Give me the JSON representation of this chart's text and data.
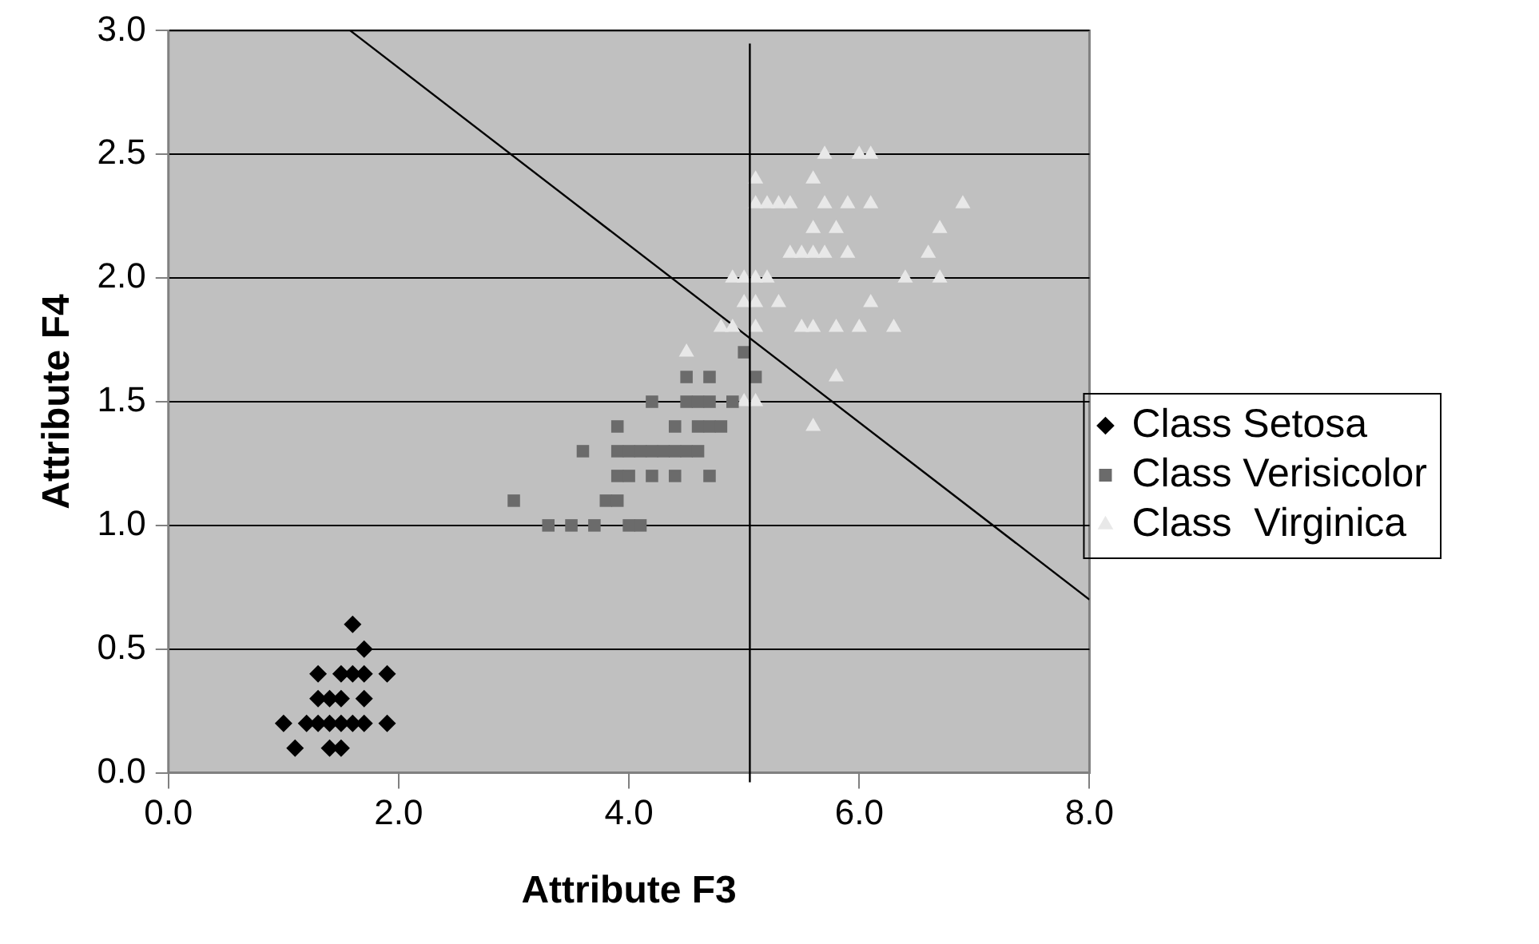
{
  "chart_data": {
    "type": "scatter",
    "xlabel": "Attribute F3",
    "ylabel": "Attribute F4",
    "xlim": [
      0,
      8
    ],
    "xticks": [
      {
        "value": 0,
        "label": "0.0"
      },
      {
        "value": 2,
        "label": "2.0"
      },
      {
        "value": 4,
        "label": "4.0"
      },
      {
        "value": 6,
        "label": "6.0"
      },
      {
        "value": 8,
        "label": "8.0"
      }
    ],
    "ylim": [
      0,
      3
    ],
    "yticks": [
      {
        "value": 0,
        "label": "0.0"
      },
      0.5,
      {
        "value": 1,
        "label": "1.0"
      },
      1.5,
      {
        "value": 2,
        "label": "2.0"
      },
      2.5,
      {
        "value": 3,
        "label": "3.0"
      }
    ],
    "grid": "y",
    "legend": "right",
    "ref_lines": [
      {
        "axis": "x",
        "value": 5.05,
        "color": "#000000"
      }
    ],
    "series": [
      {
        "name": "Class Setosa",
        "color": "#000000",
        "marker": "diamond",
        "x": [
          1.6,
          1.7,
          1.3,
          1.5,
          1.6,
          1.7,
          1.9,
          1.3,
          1.4,
          1.5,
          1.7,
          1.0,
          1.2,
          1.3,
          1.4,
          1.5,
          1.6,
          1.7,
          1.9,
          1.1,
          1.4,
          1.5
        ],
        "values": [
          0.6,
          0.5,
          0.4,
          0.4,
          0.4,
          0.4,
          0.4,
          0.3,
          0.3,
          0.3,
          0.3,
          0.2,
          0.2,
          0.2,
          0.2,
          0.2,
          0.2,
          0.2,
          0.2,
          0.1,
          0.1,
          0.1
        ]
      },
      {
        "name": "Class Verisicolor",
        "color": "#6b6b6b",
        "marker": "square",
        "x": [
          3.3,
          3.5,
          3.7,
          4.0,
          4.1,
          3.0,
          3.8,
          3.9,
          3.9,
          4.0,
          4.2,
          4.4,
          4.7,
          3.6,
          3.9,
          4.0,
          4.1,
          4.2,
          4.3,
          4.4,
          4.5,
          4.6,
          3.9,
          4.4,
          4.6,
          4.7,
          4.8,
          4.2,
          4.5,
          4.6,
          4.7,
          4.9,
          4.5,
          4.7,
          5.1,
          5.0
        ],
        "values": [
          1.0,
          1.0,
          1.0,
          1.0,
          1.0,
          1.1,
          1.1,
          1.1,
          1.2,
          1.2,
          1.2,
          1.2,
          1.2,
          1.3,
          1.3,
          1.3,
          1.3,
          1.3,
          1.3,
          1.3,
          1.3,
          1.3,
          1.4,
          1.4,
          1.4,
          1.4,
          1.4,
          1.5,
          1.5,
          1.5,
          1.5,
          1.5,
          1.6,
          1.6,
          1.6,
          1.7
        ]
      },
      {
        "name": "Class  Virginica",
        "color": "#e8e8e8",
        "marker": "triangle",
        "x": [
          5.6,
          5.0,
          5.1,
          5.8,
          4.5,
          4.8,
          4.9,
          5.1,
          5.5,
          5.6,
          5.8,
          6.0,
          6.3,
          5.0,
          5.1,
          5.3,
          6.1,
          4.9,
          5.0,
          5.1,
          5.2,
          6.4,
          6.7,
          5.4,
          5.5,
          5.6,
          5.7,
          5.9,
          6.6,
          5.6,
          5.8,
          6.7,
          5.1,
          5.2,
          5.3,
          5.4,
          5.7,
          5.9,
          6.1,
          6.9,
          5.1,
          5.6,
          5.7,
          6.0,
          6.1
        ],
        "values": [
          1.4,
          1.5,
          1.5,
          1.6,
          1.7,
          1.8,
          1.8,
          1.8,
          1.8,
          1.8,
          1.8,
          1.8,
          1.8,
          1.9,
          1.9,
          1.9,
          1.9,
          2.0,
          2.0,
          2.0,
          2.0,
          2.0,
          2.0,
          2.1,
          2.1,
          2.1,
          2.1,
          2.1,
          2.1,
          2.2,
          2.2,
          2.2,
          2.3,
          2.3,
          2.3,
          2.3,
          2.3,
          2.3,
          2.3,
          2.3,
          2.4,
          2.4,
          2.5,
          2.5,
          2.5
        ]
      },
      {
        "type": "line",
        "color": "#000000",
        "marker": "none",
        "x": [
          1.58,
          8
        ],
        "values": [
          3.0,
          0.7
        ]
      }
    ]
  }
}
